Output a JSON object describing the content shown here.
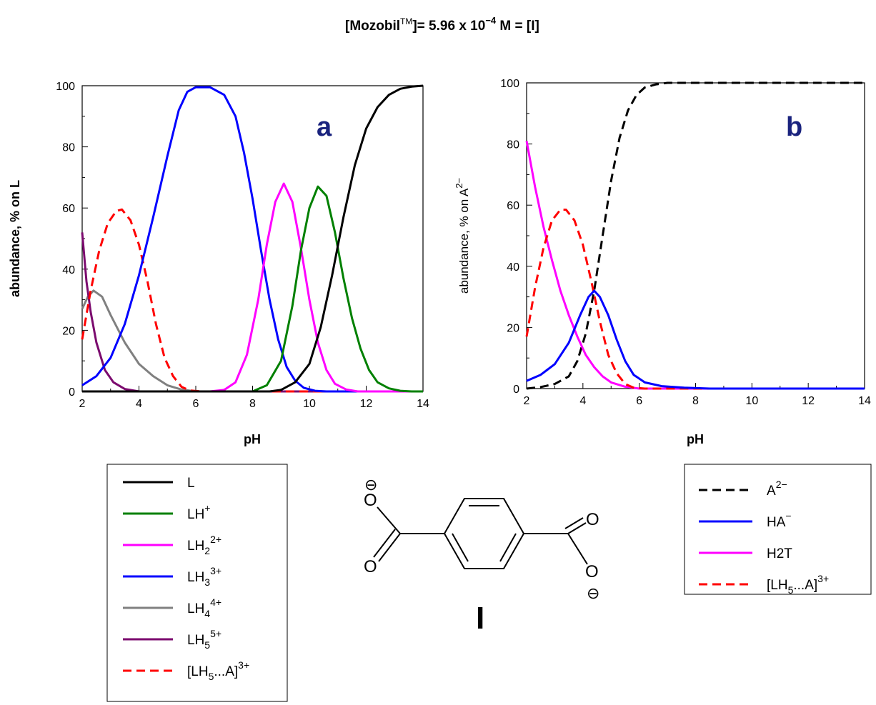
{
  "title": {
    "prefix": "[Mozobil",
    "tm": "TM",
    "mid": "]= 5.96 x 10",
    "exp": "−4",
    "suffix": " M = [I]"
  },
  "colors": {
    "L": "#000000",
    "LH": "#008000",
    "LH2": "#ff00ff",
    "LH3": "#0000ff",
    "LH4": "#808080",
    "LH5": "#7b0a6e",
    "LH5A": "#ff0000"
  },
  "chart_data": [
    {
      "type": "line",
      "panel_label": "a",
      "xlabel": "pH",
      "ylabel": "abundance,  % on L",
      "xlim": [
        2,
        14
      ],
      "ylim": [
        0,
        100
      ],
      "xticks": [
        2,
        4,
        6,
        8,
        10,
        12,
        14
      ],
      "yticks": [
        0,
        20,
        40,
        60,
        80,
        100
      ],
      "grid": false,
      "series": [
        {
          "key": "LH4",
          "color": "#808080",
          "dash": false,
          "points": [
            [
              2,
              27
            ],
            [
              2.2,
              31
            ],
            [
              2.4,
              33
            ],
            [
              2.7,
              31
            ],
            [
              3,
              25
            ],
            [
              3.5,
              16
            ],
            [
              4,
              9
            ],
            [
              4.5,
              5
            ],
            [
              5,
              2
            ],
            [
              5.5,
              0.6
            ],
            [
              6,
              0
            ],
            [
              14,
              0
            ]
          ]
        },
        {
          "key": "LH5",
          "color": "#7b0a6e",
          "dash": false,
          "points": [
            [
              2,
              52
            ],
            [
              2.15,
              36
            ],
            [
              2.3,
              26
            ],
            [
              2.5,
              16
            ],
            [
              2.8,
              7
            ],
            [
              3.1,
              3
            ],
            [
              3.5,
              0.8
            ],
            [
              4,
              0
            ],
            [
              14,
              0
            ]
          ]
        },
        {
          "key": "LH5A",
          "color": "#ff0000",
          "dash": true,
          "points": [
            [
              2,
              17
            ],
            [
              2.3,
              33
            ],
            [
              2.6,
              46
            ],
            [
              2.9,
              55
            ],
            [
              3.2,
              59
            ],
            [
              3.4,
              59.5
            ],
            [
              3.7,
              56
            ],
            [
              4,
              48
            ],
            [
              4.3,
              36
            ],
            [
              4.6,
              22
            ],
            [
              4.9,
              11
            ],
            [
              5.2,
              5
            ],
            [
              5.5,
              1.5
            ],
            [
              5.8,
              0.3
            ],
            [
              6.2,
              0
            ],
            [
              14,
              0
            ]
          ]
        },
        {
          "key": "LH3",
          "color": "#0000ff",
          "dash": false,
          "points": [
            [
              2,
              2
            ],
            [
              2.5,
              5
            ],
            [
              3,
              11
            ],
            [
              3.5,
              22
            ],
            [
              4,
              38
            ],
            [
              4.5,
              57
            ],
            [
              5,
              77
            ],
            [
              5.4,
              92
            ],
            [
              5.7,
              98
            ],
            [
              6,
              99.5
            ],
            [
              6.5,
              99.5
            ],
            [
              7,
              97
            ],
            [
              7.4,
              90
            ],
            [
              7.7,
              78
            ],
            [
              8,
              63
            ],
            [
              8.3,
              46
            ],
            [
              8.6,
              30
            ],
            [
              8.9,
              17
            ],
            [
              9.2,
              8
            ],
            [
              9.5,
              3.5
            ],
            [
              9.8,
              1.2
            ],
            [
              10.2,
              0.2
            ],
            [
              10.6,
              0
            ],
            [
              14,
              0
            ]
          ]
        },
        {
          "key": "LH2",
          "color": "#ff00ff",
          "dash": false,
          "points": [
            [
              2,
              0
            ],
            [
              6.5,
              0
            ],
            [
              7,
              0.5
            ],
            [
              7.4,
              3
            ],
            [
              7.8,
              12
            ],
            [
              8.2,
              30
            ],
            [
              8.5,
              48
            ],
            [
              8.8,
              62
            ],
            [
              9.1,
              68
            ],
            [
              9.4,
              62
            ],
            [
              9.7,
              47
            ],
            [
              10,
              30
            ],
            [
              10.3,
              16
            ],
            [
              10.6,
              7
            ],
            [
              10.9,
              2.5
            ],
            [
              11.3,
              0.6
            ],
            [
              11.7,
              0
            ],
            [
              14,
              0
            ]
          ]
        },
        {
          "key": "LH",
          "color": "#008000",
          "dash": false,
          "points": [
            [
              2,
              0
            ],
            [
              8,
              0
            ],
            [
              8.5,
              2
            ],
            [
              9,
              10
            ],
            [
              9.4,
              28
            ],
            [
              9.7,
              46
            ],
            [
              10,
              60
            ],
            [
              10.3,
              67
            ],
            [
              10.6,
              64
            ],
            [
              10.9,
              52
            ],
            [
              11.2,
              37
            ],
            [
              11.5,
              24
            ],
            [
              11.8,
              14
            ],
            [
              12.1,
              7
            ],
            [
              12.4,
              3
            ],
            [
              12.8,
              1
            ],
            [
              13.2,
              0.2
            ],
            [
              13.6,
              0
            ],
            [
              14,
              0
            ]
          ]
        },
        {
          "key": "L",
          "color": "#000000",
          "dash": false,
          "points": [
            [
              2,
              0
            ],
            [
              8.6,
              0
            ],
            [
              9,
              0.5
            ],
            [
              9.5,
              3
            ],
            [
              10,
              9
            ],
            [
              10.4,
              21
            ],
            [
              10.8,
              38
            ],
            [
              11.2,
              57
            ],
            [
              11.6,
              74
            ],
            [
              12,
              86
            ],
            [
              12.4,
              93
            ],
            [
              12.8,
              97
            ],
            [
              13.2,
              99
            ],
            [
              13.6,
              99.7
            ],
            [
              14,
              100
            ]
          ]
        }
      ]
    },
    {
      "type": "line",
      "panel_label": "b",
      "xlabel": "pH",
      "ylabel_prefix": "abundance, % on A",
      "ylabel_sup": "2−",
      "xlim": [
        2,
        14
      ],
      "ylim": [
        0,
        100
      ],
      "xticks": [
        2,
        4,
        6,
        8,
        10,
        12,
        14
      ],
      "yticks": [
        0,
        20,
        40,
        60,
        80,
        100
      ],
      "grid": false,
      "series": [
        {
          "key": "A",
          "color": "#000000",
          "dash": true,
          "points": [
            [
              2,
              0
            ],
            [
              2.5,
              0.5
            ],
            [
              3,
              1.5
            ],
            [
              3.5,
              4
            ],
            [
              3.8,
              9
            ],
            [
              4.1,
              18
            ],
            [
              4.4,
              32
            ],
            [
              4.7,
              50
            ],
            [
              5,
              68
            ],
            [
              5.3,
              82
            ],
            [
              5.6,
              91
            ],
            [
              5.9,
              96
            ],
            [
              6.2,
              98.5
            ],
            [
              6.6,
              99.5
            ],
            [
              7,
              100
            ],
            [
              14,
              100
            ]
          ]
        },
        {
          "key": "H2T",
          "color": "#ff00ff",
          "dash": false,
          "points": [
            [
              2,
              81
            ],
            [
              2.3,
              66
            ],
            [
              2.6,
              53
            ],
            [
              2.9,
              42
            ],
            [
              3.2,
              32
            ],
            [
              3.5,
              24
            ],
            [
              3.8,
              17
            ],
            [
              4.1,
              11
            ],
            [
              4.4,
              7
            ],
            [
              4.7,
              4
            ],
            [
              5,
              2
            ],
            [
              5.5,
              0.6
            ],
            [
              6,
              0
            ],
            [
              14,
              0
            ]
          ]
        },
        {
          "key": "LH5A",
          "color": "#ff0000",
          "dash": true,
          "points": [
            [
              2,
              17
            ],
            [
              2.3,
              33
            ],
            [
              2.6,
              46
            ],
            [
              2.9,
              55
            ],
            [
              3.2,
              58.5
            ],
            [
              3.4,
              58.5
            ],
            [
              3.7,
              55
            ],
            [
              4,
              47
            ],
            [
              4.3,
              35
            ],
            [
              4.6,
              22
            ],
            [
              4.9,
              11
            ],
            [
              5.2,
              5
            ],
            [
              5.5,
              1.5
            ],
            [
              5.8,
              0.3
            ],
            [
              6.2,
              0
            ],
            [
              14,
              0
            ]
          ]
        },
        {
          "key": "HA",
          "color": "#0000ff",
          "dash": false,
          "points": [
            [
              2,
              2.5
            ],
            [
              2.5,
              4.5
            ],
            [
              3,
              8
            ],
            [
              3.5,
              15
            ],
            [
              3.9,
              24
            ],
            [
              4.2,
              30
            ],
            [
              4.4,
              32
            ],
            [
              4.6,
              30
            ],
            [
              4.9,
              24
            ],
            [
              5.2,
              16
            ],
            [
              5.5,
              9
            ],
            [
              5.8,
              4.5
            ],
            [
              6.2,
              2
            ],
            [
              6.8,
              0.8
            ],
            [
              7.6,
              0.3
            ],
            [
              8.5,
              0
            ],
            [
              14,
              0
            ]
          ]
        }
      ]
    }
  ],
  "legend_a": [
    {
      "key": "L",
      "base": "L",
      "sub": "",
      "sup": "",
      "color": "#000000",
      "dash": false
    },
    {
      "key": "LH",
      "base": "LH",
      "sub": "",
      "sup": "+",
      "color": "#008000",
      "dash": false
    },
    {
      "key": "LH2",
      "base": "LH",
      "sub": "2",
      "sup": "2+",
      "color": "#ff00ff",
      "dash": false
    },
    {
      "key": "LH3",
      "base": "LH",
      "sub": "3",
      "sup": "3+",
      "color": "#0000ff",
      "dash": false
    },
    {
      "key": "LH4",
      "base": "LH",
      "sub": "4",
      "sup": "4+",
      "color": "#808080",
      "dash": false
    },
    {
      "key": "LH5",
      "base": "LH",
      "sub": "5",
      "sup": "5+",
      "color": "#7b0a6e",
      "dash": false
    },
    {
      "key": "LH5A",
      "base": "[LH",
      "sub": "5",
      "tail": "...A]",
      "sup": "3+",
      "color": "#ff0000",
      "dash": true
    }
  ],
  "legend_b": [
    {
      "key": "A",
      "base": "A",
      "sub": "",
      "sup": "2−",
      "color": "#000000",
      "dash": true
    },
    {
      "key": "HA",
      "base": "HA",
      "sub": "",
      "sup": "−",
      "color": "#0000ff",
      "dash": false
    },
    {
      "key": "H2T",
      "base": "H2T",
      "sub": "",
      "sup": "",
      "color": "#ff00ff",
      "dash": false
    },
    {
      "key": "LH5A",
      "base": "[LH",
      "sub": "5",
      "tail": "...A]",
      "sup": "3+",
      "color": "#ff0000",
      "dash": true
    }
  ],
  "molecule": {
    "label": "I",
    "charge": "⊖",
    "oxygen": "O"
  }
}
